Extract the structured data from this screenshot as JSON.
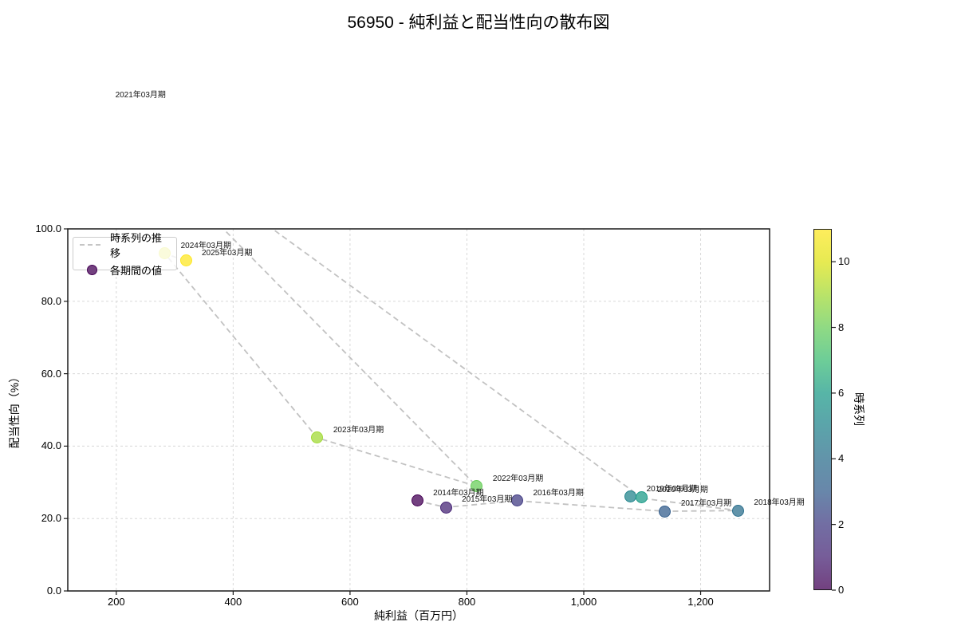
{
  "chart_data": {
    "type": "scatter",
    "title": "56950 - 純利益と配当性向の散布図",
    "xlabel": "純利益（百万円）",
    "ylabel": "配当性向（%）",
    "xlim": [
      117,
      1318
    ],
    "ylim": [
      0,
      100
    ],
    "grid": true,
    "x_ticks": [
      {
        "value": 200,
        "label": "200"
      },
      {
        "value": 400,
        "label": "400"
      },
      {
        "value": 600,
        "label": "600"
      },
      {
        "value": 800,
        "label": "800"
      },
      {
        "value": 1000,
        "label": "1,000"
      },
      {
        "value": 1200,
        "label": "1,200"
      }
    ],
    "y_ticks": [
      {
        "value": 0,
        "label": "0.0"
      },
      {
        "value": 20,
        "label": "20.0"
      },
      {
        "value": 40,
        "label": "40.0"
      },
      {
        "value": 60,
        "label": "60.0"
      },
      {
        "value": 80,
        "label": "80.0"
      },
      {
        "value": 100,
        "label": "100.0"
      }
    ],
    "legend": {
      "position": "upper left",
      "line_label": "時系列の推移",
      "marker_label": "各期間の値"
    },
    "colorbar": {
      "label": "時系列",
      "vmin": 0,
      "vmax": 11,
      "ticks": [
        {
          "value": 0,
          "label": "0"
        },
        {
          "value": 2,
          "label": "2"
        },
        {
          "value": 4,
          "label": "4"
        },
        {
          "value": 6,
          "label": "6"
        },
        {
          "value": 8,
          "label": "8"
        },
        {
          "value": 10,
          "label": "10"
        }
      ],
      "gradient_top_to_bottom": [
        "#feed5c",
        "#e6ea52",
        "#b9e369",
        "#8fda84",
        "#6dcd98",
        "#57b5a7",
        "#5ba4aa",
        "#6294aa",
        "#6887aa",
        "#726ea3",
        "#765d99",
        "#734180"
      ]
    },
    "line_color": "#c2c2c2",
    "grid_color": "#d8d8d8",
    "points": [
      {
        "label": "2014年03月期",
        "x": 715,
        "y": 24.9,
        "t": 0,
        "fill": "#734180",
        "edge": "#440154"
      },
      {
        "label": "2015年03月期",
        "x": 764,
        "y": 23.1,
        "t": 1,
        "fill": "#765d99",
        "edge": "#482677"
      },
      {
        "label": "2016年03月期",
        "x": 886,
        "y": 24.9,
        "t": 2,
        "fill": "#726ea3",
        "edge": "#433d84"
      },
      {
        "label": "2017年03月期",
        "x": 1139,
        "y": 22.0,
        "t": 3,
        "fill": "#6887aa",
        "edge": "#355f8d"
      },
      {
        "label": "2018年03月期",
        "x": 1264,
        "y": 22.2,
        "t": 4,
        "fill": "#6294aa",
        "edge": "#2d708e"
      },
      {
        "label": "2019年03月期",
        "x": 1080,
        "y": 26.0,
        "t": 5,
        "fill": "#5ba4aa",
        "edge": "#24868e"
      },
      {
        "label": "2020年03月期",
        "x": 1099,
        "y": 25.8,
        "t": 6,
        "fill": "#57b5a7",
        "edge": "#1f9c89"
      },
      {
        "label": "2021年03月期",
        "x": 171,
        "y": 134.8,
        "t": 7,
        "fill": "#6dcd98",
        "edge": "#3cbc75"
      },
      {
        "label": "2022年03月期",
        "x": 817,
        "y": 28.9,
        "t": 8,
        "fill": "#8fda84",
        "edge": "#69cd5b"
      },
      {
        "label": "2023年03月期",
        "x": 544,
        "y": 42.3,
        "t": 9,
        "fill": "#b9e369",
        "edge": "#a2da37"
      },
      {
        "label": "2024年03月期",
        "x": 283,
        "y": 93.2,
        "t": 10,
        "fill": "#e6ea52",
        "edge": "#dde318"
      },
      {
        "label": "2025年03月期",
        "x": 319,
        "y": 91.2,
        "t": 11,
        "fill": "#feed5c",
        "edge": "#fde725"
      }
    ]
  }
}
